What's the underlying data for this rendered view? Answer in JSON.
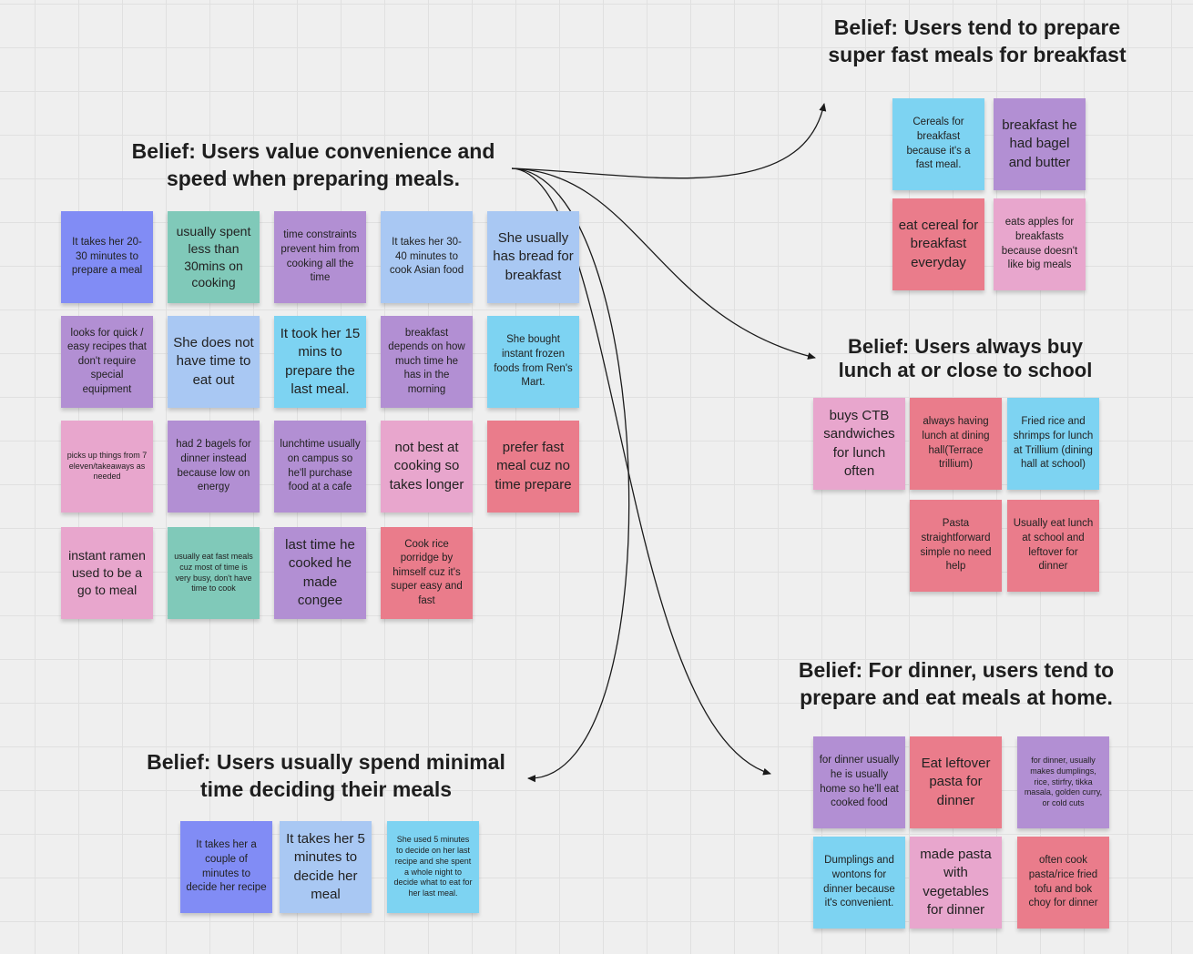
{
  "headings": {
    "convenience": [
      "Belief: Users value convenience and",
      "speed when preparing meals."
    ],
    "breakfast": [
      "Belief: Users tend to prepare",
      "super fast meals for breakfast"
    ],
    "lunch": [
      "Belief: Users always buy",
      "lunch at or close to school"
    ],
    "dinner": [
      "Belief: For dinner, users tend to",
      "prepare and eat meals at home."
    ],
    "deciding": [
      "Belief: Users usually spend minimal",
      "time deciding their meals"
    ]
  },
  "notes": {
    "convenience": [
      "It takes her 20-30 minutes to prepare a meal",
      "usually spent less than 30mins on cooking",
      "time constraints prevent him from cooking all the time",
      "It takes her 30-40 minutes to cook Asian food",
      "She usually has bread for breakfast",
      "looks for quick / easy recipes that don't require special equipment",
      "She does not have time to eat out",
      "It took her 15 mins to prepare the last meal.",
      "breakfast depends on how much time he has in the morning",
      "She bought instant frozen foods from Ren's Mart.",
      "picks up things from 7 eleven/takeaways as needed",
      "had 2 bagels for dinner instead because low on energy",
      "lunchtime usually on campus so he'll purchase food at a cafe",
      "not best at cooking so takes longer",
      "prefer fast meal cuz no time prepare",
      "instant ramen used to be a go to meal",
      "usually eat fast meals cuz most of time is very busy, don't have time to cook",
      "last time he cooked he made congee",
      "Cook rice porridge by himself cuz it's super easy and fast"
    ],
    "breakfast": [
      "Cereals for breakfast because it's a fast meal.",
      "breakfast he had bagel and butter",
      "eat cereal for breakfast everyday",
      "eats apples for breakfasts because doesn't like big meals"
    ],
    "lunch": [
      "buys CTB sandwiches for lunch often",
      "always having lunch at dining hall(Terrace trillium)",
      "Fried rice and shrimps for lunch at Trillium (dining hall at school)",
      "Pasta straightforward simple no need help",
      "Usually eat lunch at school and leftover for dinner"
    ],
    "dinner": [
      "for dinner usually he is usually home so he'll eat cooked food",
      "Eat leftover pasta for dinner",
      "for dinner, usually makes dumplings, rice, stirfry, tikka masala, golden curry, or cold cuts",
      "Dumplings and wontons for dinner because it's convenient.",
      "made pasta with vegetables for dinner",
      "often cook pasta/rice fried tofu and bok choy for dinner"
    ],
    "deciding": [
      "It takes her a couple of minutes to decide her recipe",
      "It takes her 5 minutes to decide her meal",
      "She used 5 minutes to decide on her last recipe and she spent a whole night to decide what to eat for her last meal."
    ]
  },
  "colors": {
    "blue": "#818cf5",
    "teal": "#80c9b9",
    "purple": "#b28fd3",
    "light_blue": "#a9c8f3",
    "cyan": "#7dd3f2",
    "pink": "#e8a6cd",
    "red": "#ea7c8b",
    "connector": "#1a1a1a"
  }
}
